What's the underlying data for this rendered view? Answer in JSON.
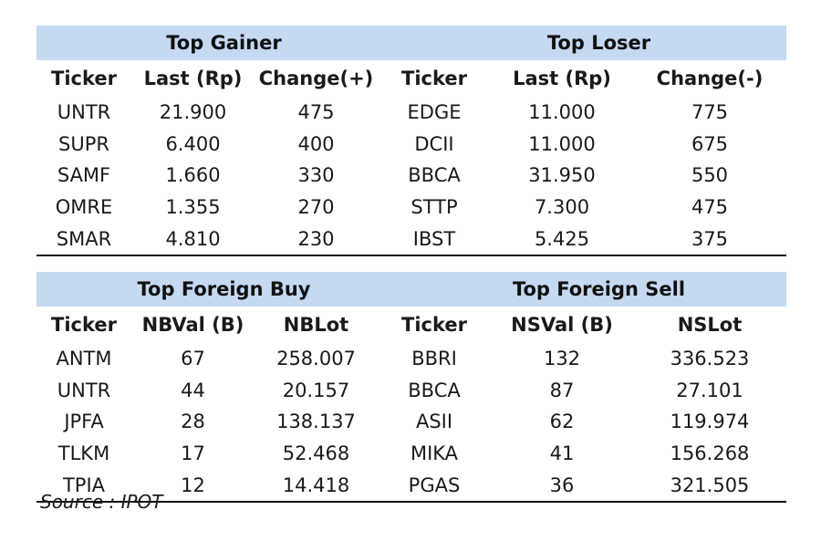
{
  "gainer_loser": {
    "left_title": "Top Gainer",
    "right_title": "Top Loser",
    "columns": [
      "Ticker",
      "Last (Rp)",
      "Change(+)",
      "Ticker",
      "Last (Rp)",
      "Change(-)"
    ],
    "rows": [
      [
        "UNTR",
        "21.900",
        "475",
        "EDGE",
        "11.000",
        "775"
      ],
      [
        "SUPR",
        "6.400",
        "400",
        "DCII",
        "11.000",
        "675"
      ],
      [
        "SAMF",
        "1.660",
        "330",
        "BBCA",
        "31.950",
        "550"
      ],
      [
        "OMRE",
        "1.355",
        "270",
        "STTP",
        "7.300",
        "475"
      ],
      [
        "SMAR",
        "4.810",
        "230",
        "IBST",
        "5.425",
        "375"
      ]
    ]
  },
  "foreign": {
    "left_title": "Top Foreign Buy",
    "right_title": "Top Foreign Sell",
    "columns": [
      "Ticker",
      "NBVal (B)",
      "NBLot",
      "Ticker",
      "NSVal (B)",
      "NSLot"
    ],
    "rows": [
      [
        "ANTM",
        "67",
        "258.007",
        "BBRI",
        "132",
        "336.523"
      ],
      [
        "UNTR",
        "44",
        "20.157",
        "BBCA",
        "87",
        "27.101"
      ],
      [
        "JPFA",
        "28",
        "138.137",
        "ASII",
        "62",
        "119.974"
      ],
      [
        "TLKM",
        "17",
        "52.468",
        "MIKA",
        "41",
        "156.268"
      ],
      [
        "TPIA",
        "12",
        "14.418",
        "PGAS",
        "36",
        "321.505"
      ]
    ]
  },
  "source": "Source : IPOT"
}
